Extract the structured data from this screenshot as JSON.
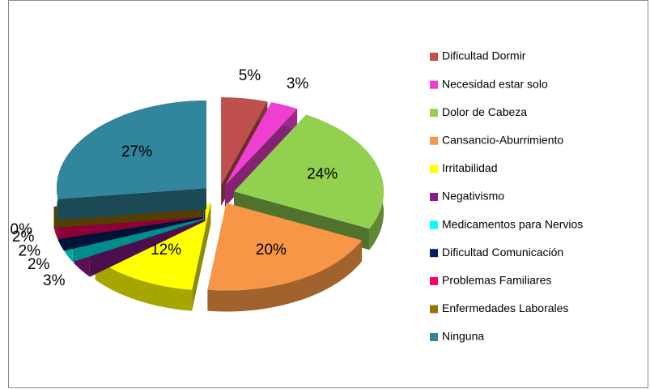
{
  "chart_data": {
    "type": "pie",
    "categories": [
      "Dificultad Dormir",
      "Necesidad estar solo",
      "Dolor de Cabeza",
      "Cansancio-Aburrimiento",
      "Irritabilidad",
      "Negativismo",
      "Medicamentos para Nervios",
      "Dificultad Comunicación",
      "Problemas Familiares",
      "Enfermedades Laborales",
      "Ninguna"
    ],
    "values": [
      5,
      3,
      24,
      20,
      12,
      3,
      2,
      2,
      2,
      0,
      27
    ],
    "value_labels": [
      "5%",
      "3%",
      "24%",
      "20%",
      "12%",
      "3%",
      "2%",
      "2%",
      "2%",
      "0%",
      "27%"
    ],
    "colors": [
      "#c0504d",
      "#f03fd0",
      "#92d050",
      "#f79646",
      "#ffff00",
      "#8b1a8b",
      "#00ffff",
      "#002060",
      "#ff0066",
      "#997300",
      "#31859c"
    ],
    "legend": "right"
  }
}
